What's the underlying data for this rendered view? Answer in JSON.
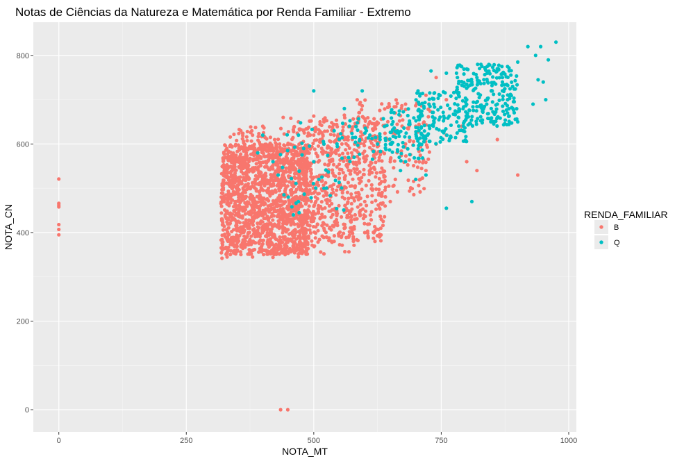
{
  "chart_data": {
    "type": "scatter",
    "title": "Notas de Ciências da Natureza e Matemática por Renda Familiar - Extremo",
    "xlabel": "NOTA_MT",
    "ylabel": "NOTA_CN",
    "xlim": [
      -50,
      1015
    ],
    "ylim": [
      -50,
      875
    ],
    "xticks": [
      0,
      250,
      500,
      750,
      1000
    ],
    "yticks": [
      0,
      200,
      400,
      600,
      800
    ],
    "grid": true,
    "legend": {
      "title": "RENDA_FAMILIAR",
      "placement": "right"
    },
    "series": [
      {
        "name": "B",
        "color": "#F8766D",
        "points": [
          [
            0,
            521
          ],
          [
            0,
            466
          ],
          [
            0,
            462
          ],
          [
            0,
            458
          ],
          [
            0,
            418
          ],
          [
            0,
            407
          ],
          [
            0,
            395
          ],
          [
            435,
            0
          ],
          [
            449,
            0
          ],
          [
            320,
            342
          ],
          [
            330,
            345
          ],
          [
            380,
            345
          ],
          [
            420,
            344
          ],
          [
            470,
            345
          ],
          [
            520,
            352
          ],
          [
            325,
            540
          ],
          [
            350,
            560
          ],
          [
            357,
            630
          ],
          [
            380,
            620
          ],
          [
            400,
            640
          ],
          [
            415,
            615
          ],
          [
            440,
            660
          ],
          [
            455,
            658
          ],
          [
            470,
            650
          ],
          [
            500,
            663
          ],
          [
            520,
            650
          ],
          [
            560,
            665
          ],
          [
            590,
            690
          ],
          [
            610,
            650
          ],
          [
            620,
            640
          ],
          [
            640,
            640
          ],
          [
            660,
            670
          ],
          [
            680,
            690
          ],
          [
            720,
            710
          ],
          [
            740,
            750
          ],
          [
            600,
            560
          ],
          [
            620,
            580
          ],
          [
            650,
            560
          ],
          [
            660,
            520
          ],
          [
            680,
            600
          ],
          [
            700,
            560
          ],
          [
            720,
            540
          ],
          [
            590,
            520
          ],
          [
            600,
            470
          ],
          [
            580,
            430
          ],
          [
            560,
            410
          ],
          [
            540,
            380
          ],
          [
            600,
            400
          ],
          [
            620,
            380
          ],
          [
            640,
            460
          ],
          [
            650,
            470
          ],
          [
            520,
            600
          ],
          [
            540,
            620
          ],
          [
            560,
            610
          ],
          [
            580,
            600
          ],
          [
            500,
            620
          ],
          [
            480,
            630
          ],
          [
            800,
            560
          ],
          [
            820,
            540
          ],
          [
            850,
            650
          ],
          [
            880,
            700
          ],
          [
            900,
            530
          ],
          [
            790,
            640
          ],
          [
            760,
            620
          ],
          [
            740,
            600
          ],
          [
            700,
            640
          ],
          [
            860,
            610
          ],
          [
            780,
            720
          ],
          [
            760,
            700
          ]
        ],
        "clusters": [
          {
            "x": [
              318,
              490
            ],
            "y": [
              350,
              600
            ],
            "count": 1400
          },
          {
            "x": [
              330,
              580
            ],
            "y": [
              355,
              640
            ],
            "count": 450
          },
          {
            "x": [
              480,
              640
            ],
            "y": [
              380,
              660
            ],
            "count": 450
          },
          {
            "x": [
              580,
              730
            ],
            "y": [
              480,
              700
            ],
            "count": 160
          }
        ]
      },
      {
        "name": "Q",
        "color": "#00BFC4",
        "points": [
          [
            975,
            830
          ],
          [
            945,
            820
          ],
          [
            920,
            820
          ],
          [
            935,
            800
          ],
          [
            960,
            790
          ],
          [
            900,
            785
          ],
          [
            880,
            775
          ],
          [
            860,
            770
          ],
          [
            840,
            760
          ],
          [
            820,
            750
          ],
          [
            810,
            740
          ],
          [
            790,
            775
          ],
          [
            780,
            760
          ],
          [
            760,
            760
          ],
          [
            730,
            765
          ],
          [
            500,
            720
          ],
          [
            595,
            720
          ],
          [
            560,
            680
          ],
          [
            780,
            720
          ],
          [
            800,
            700
          ],
          [
            950,
            740
          ],
          [
            940,
            745
          ],
          [
            955,
            700
          ],
          [
            930,
            690
          ],
          [
            900,
            650
          ],
          [
            880,
            670
          ],
          [
            860,
            660
          ],
          [
            840,
            700
          ],
          [
            830,
            680
          ],
          [
            810,
            470
          ],
          [
            760,
            455
          ],
          [
            720,
            530
          ],
          [
            700,
            520
          ],
          [
            680,
            560
          ],
          [
            670,
            540
          ],
          [
            650,
            600
          ],
          [
            630,
            610
          ],
          [
            610,
            620
          ],
          [
            590,
            610
          ],
          [
            570,
            640
          ],
          [
            540,
            630
          ],
          [
            520,
            600
          ],
          [
            470,
            470
          ],
          [
            460,
            440
          ],
          [
            450,
            480
          ],
          [
            430,
            530
          ],
          [
            420,
            560
          ],
          [
            400,
            620
          ],
          [
            390,
            580
          ],
          [
            520,
            500
          ],
          [
            510,
            520
          ],
          [
            500,
            560
          ],
          [
            480,
            590
          ],
          [
            470,
            620
          ],
          [
            880,
            700
          ],
          [
            870,
            720
          ],
          [
            890,
            730
          ],
          [
            850,
            720
          ],
          [
            860,
            690
          ],
          [
            870,
            750
          ]
        ],
        "clusters": [
          {
            "x": [
              780,
              900
            ],
            "y": [
              640,
              780
            ],
            "count": 220
          },
          {
            "x": [
              700,
              800
            ],
            "y": [
              600,
              720
            ],
            "count": 120
          },
          {
            "x": [
              640,
              720
            ],
            "y": [
              560,
              680
            ],
            "count": 70
          },
          {
            "x": [
              560,
              660
            ],
            "y": [
              560,
              660
            ],
            "count": 40
          },
          {
            "x": [
              430,
              560
            ],
            "y": [
              440,
              650
            ],
            "count": 40
          }
        ]
      }
    ]
  }
}
